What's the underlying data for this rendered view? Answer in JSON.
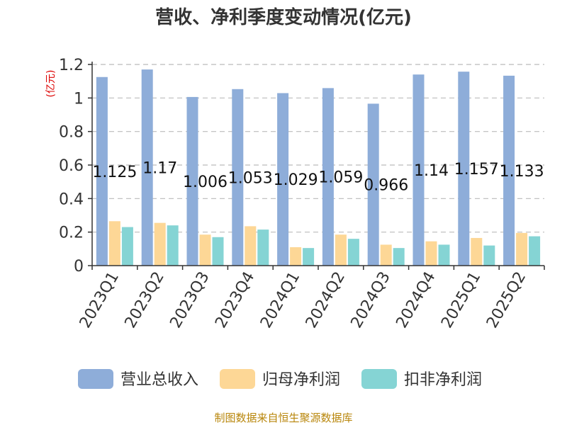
{
  "chart_data": {
    "type": "bar",
    "title": "营收、净利季度变动情况(亿元)",
    "ylabel": "(亿元)",
    "ylim": [
      0,
      1.2
    ],
    "yticks": [
      "0",
      "0.2",
      "0.4",
      "0.6",
      "0.8",
      "1",
      "1.2"
    ],
    "categories": [
      "2023Q1",
      "2023Q2",
      "2023Q3",
      "2023Q4",
      "2024Q1",
      "2024Q2",
      "2024Q3",
      "2024Q4",
      "2025Q1",
      "2025Q2"
    ],
    "series": [
      {
        "name": "营业总收入",
        "color": "#8eadd9",
        "values": [
          1.125,
          1.17,
          1.006,
          1.053,
          1.029,
          1.059,
          0.966,
          1.14,
          1.157,
          1.133
        ]
      },
      {
        "name": "归母净利润",
        "color": "#fdd796",
        "values": [
          0.265,
          0.255,
          0.185,
          0.235,
          0.11,
          0.185,
          0.125,
          0.145,
          0.165,
          0.195
        ]
      },
      {
        "name": "扣非净利润",
        "color": "#85d4d4",
        "values": [
          0.23,
          0.24,
          0.17,
          0.215,
          0.105,
          0.16,
          0.105,
          0.125,
          0.12,
          0.175
        ]
      }
    ],
    "data_labels": [
      "1.125",
      "1.17",
      "1.006",
      "1.053",
      "1.029",
      "1.059",
      "0.966",
      "1.14",
      "1.157",
      "1.133"
    ],
    "grid": true,
    "legend": "bottom"
  },
  "source": "制图数据来自恒生聚源数据库",
  "colors": {
    "unit": "#dd0000",
    "source": "#b8860b",
    "axis": "#333333",
    "grid": "#bbbbbb"
  }
}
